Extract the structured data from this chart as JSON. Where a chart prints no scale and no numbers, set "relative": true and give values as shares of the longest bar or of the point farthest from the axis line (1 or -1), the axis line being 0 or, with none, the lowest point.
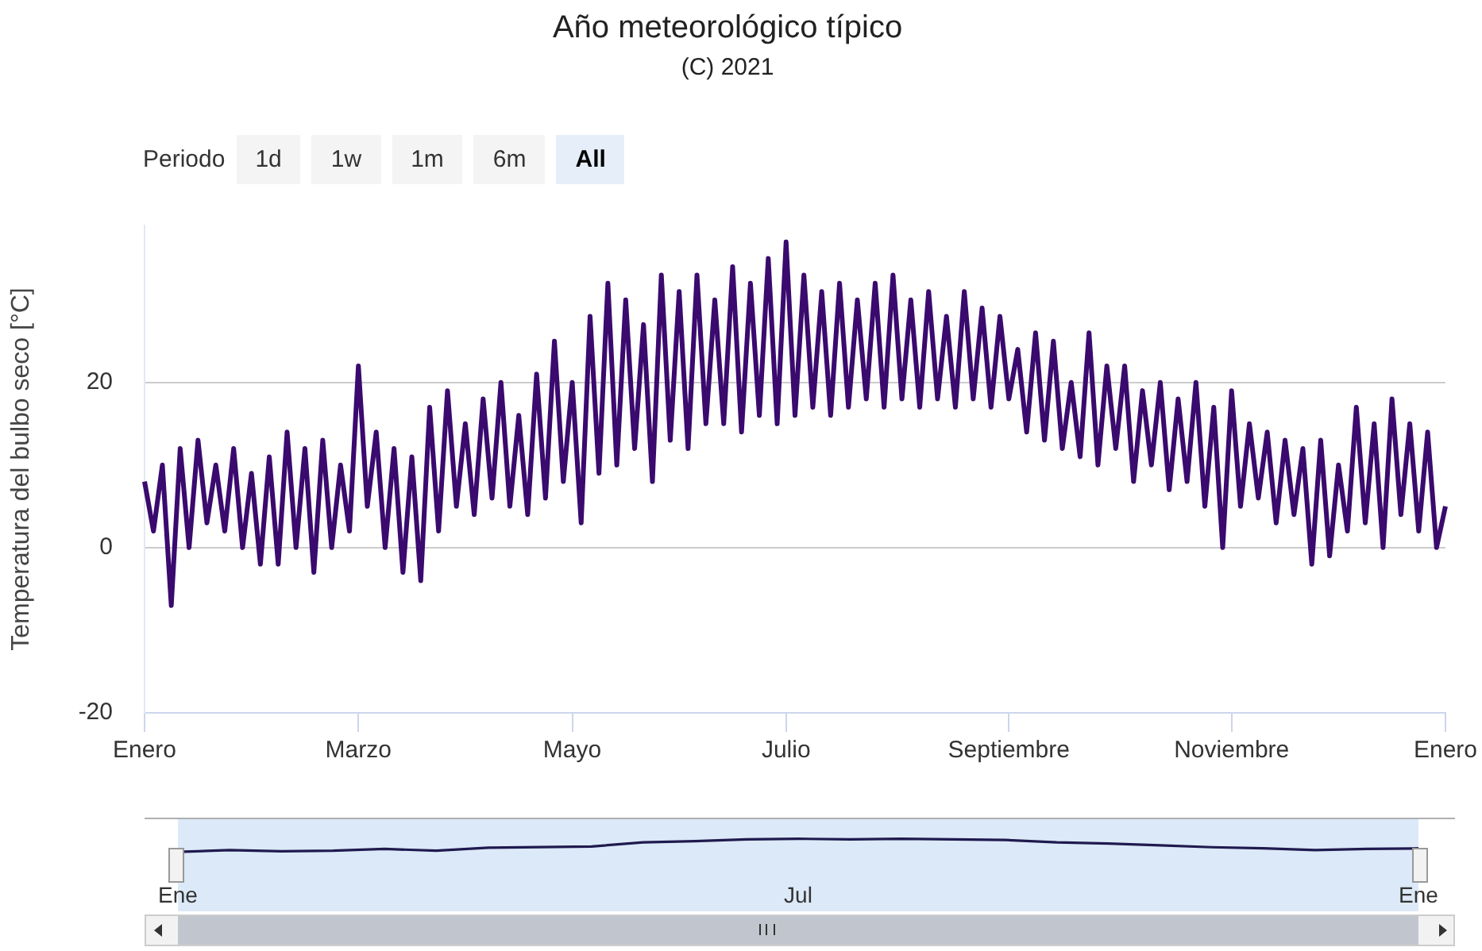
{
  "chart_data": [
    {
      "type": "line",
      "title": "Año meteorológico típico",
      "subtitle": "(C) 2021",
      "ylabel": "Temperatura del bulbo seco [°C]",
      "annotations": [
        "Periodo",
        "1d",
        "1w",
        "1m",
        "6m",
        "All"
      ],
      "color": "#3a0a6e",
      "marker": "none",
      "grid": "y",
      "ylim": [
        -20,
        39
      ],
      "yticks": [
        -20,
        0,
        20
      ],
      "categories": [
        "Enero",
        null,
        null,
        null,
        null,
        null,
        null,
        null,
        null,
        null,
        null,
        null,
        null,
        null,
        null,
        null,
        null,
        null,
        null,
        null,
        null,
        null,
        null,
        null,
        "Marzo",
        null,
        null,
        null,
        null,
        null,
        null,
        null,
        null,
        null,
        null,
        null,
        null,
        null,
        null,
        null,
        null,
        null,
        null,
        null,
        null,
        null,
        null,
        null,
        "Mayo",
        null,
        null,
        null,
        null,
        null,
        null,
        null,
        null,
        null,
        null,
        null,
        null,
        null,
        null,
        null,
        null,
        null,
        null,
        null,
        null,
        null,
        null,
        null,
        "Julio",
        null,
        null,
        null,
        null,
        null,
        null,
        null,
        null,
        null,
        null,
        null,
        null,
        null,
        null,
        null,
        null,
        null,
        null,
        null,
        null,
        null,
        null,
        null,
        null,
        "Septiembre",
        null,
        null,
        null,
        null,
        null,
        null,
        null,
        null,
        null,
        null,
        null,
        null,
        null,
        null,
        null,
        null,
        null,
        null,
        null,
        null,
        null,
        null,
        null,
        null,
        "Noviembre",
        null,
        null,
        null,
        null,
        null,
        null,
        null,
        null,
        null,
        null,
        null,
        null,
        null,
        null,
        null,
        null,
        null,
        null,
        null,
        null,
        null,
        null,
        null,
        "Enero"
      ],
      "values": [
        8,
        2,
        10,
        -7,
        12,
        0,
        13,
        3,
        10,
        2,
        12,
        0,
        9,
        -2,
        11,
        -2,
        14,
        0,
        12,
        -3,
        13,
        0,
        10,
        2,
        22,
        5,
        14,
        0,
        12,
        -3,
        11,
        -4,
        17,
        2,
        19,
        5,
        15,
        4,
        18,
        6,
        20,
        5,
        16,
        4,
        21,
        6,
        25,
        8,
        20,
        3,
        28,
        9,
        32,
        10,
        30,
        12,
        27,
        8,
        33,
        13,
        31,
        12,
        33,
        15,
        30,
        15,
        34,
        14,
        32,
        16,
        35,
        15,
        37,
        16,
        33,
        17,
        31,
        16,
        32,
        17,
        30,
        18,
        32,
        17,
        33,
        18,
        30,
        17,
        31,
        18,
        28,
        17,
        31,
        18,
        29,
        17,
        28,
        18,
        24,
        14,
        26,
        13,
        25,
        12,
        20,
        11,
        26,
        10,
        22,
        12,
        22,
        8,
        19,
        10,
        20,
        7,
        18,
        8,
        20,
        5,
        17,
        0,
        19,
        5,
        15,
        6,
        14,
        3,
        13,
        4,
        12,
        -2,
        13,
        -1,
        10,
        2,
        17,
        3,
        15,
        0,
        18,
        4,
        15,
        2,
        14,
        0,
        5
      ]
    },
    {
      "type": "line",
      "relative": true,
      "color": "#1f1a4f",
      "marker": "none",
      "categories": [
        "Ene",
        null,
        null,
        null,
        null,
        null,
        null,
        null,
        null,
        null,
        null,
        null,
        "Jul",
        null,
        null,
        null,
        null,
        null,
        null,
        null,
        null,
        null,
        null,
        null,
        "Ene"
      ],
      "values": [
        0,
        0.14,
        0.05,
        0.09,
        0.23,
        0.09,
        0.32,
        0.36,
        0.41,
        0.73,
        0.82,
        0.95,
        1,
        0.95,
        1,
        0.95,
        0.91,
        0.73,
        0.64,
        0.5,
        0.36,
        0.27,
        0.14,
        0.23,
        0.27
      ]
    }
  ]
}
